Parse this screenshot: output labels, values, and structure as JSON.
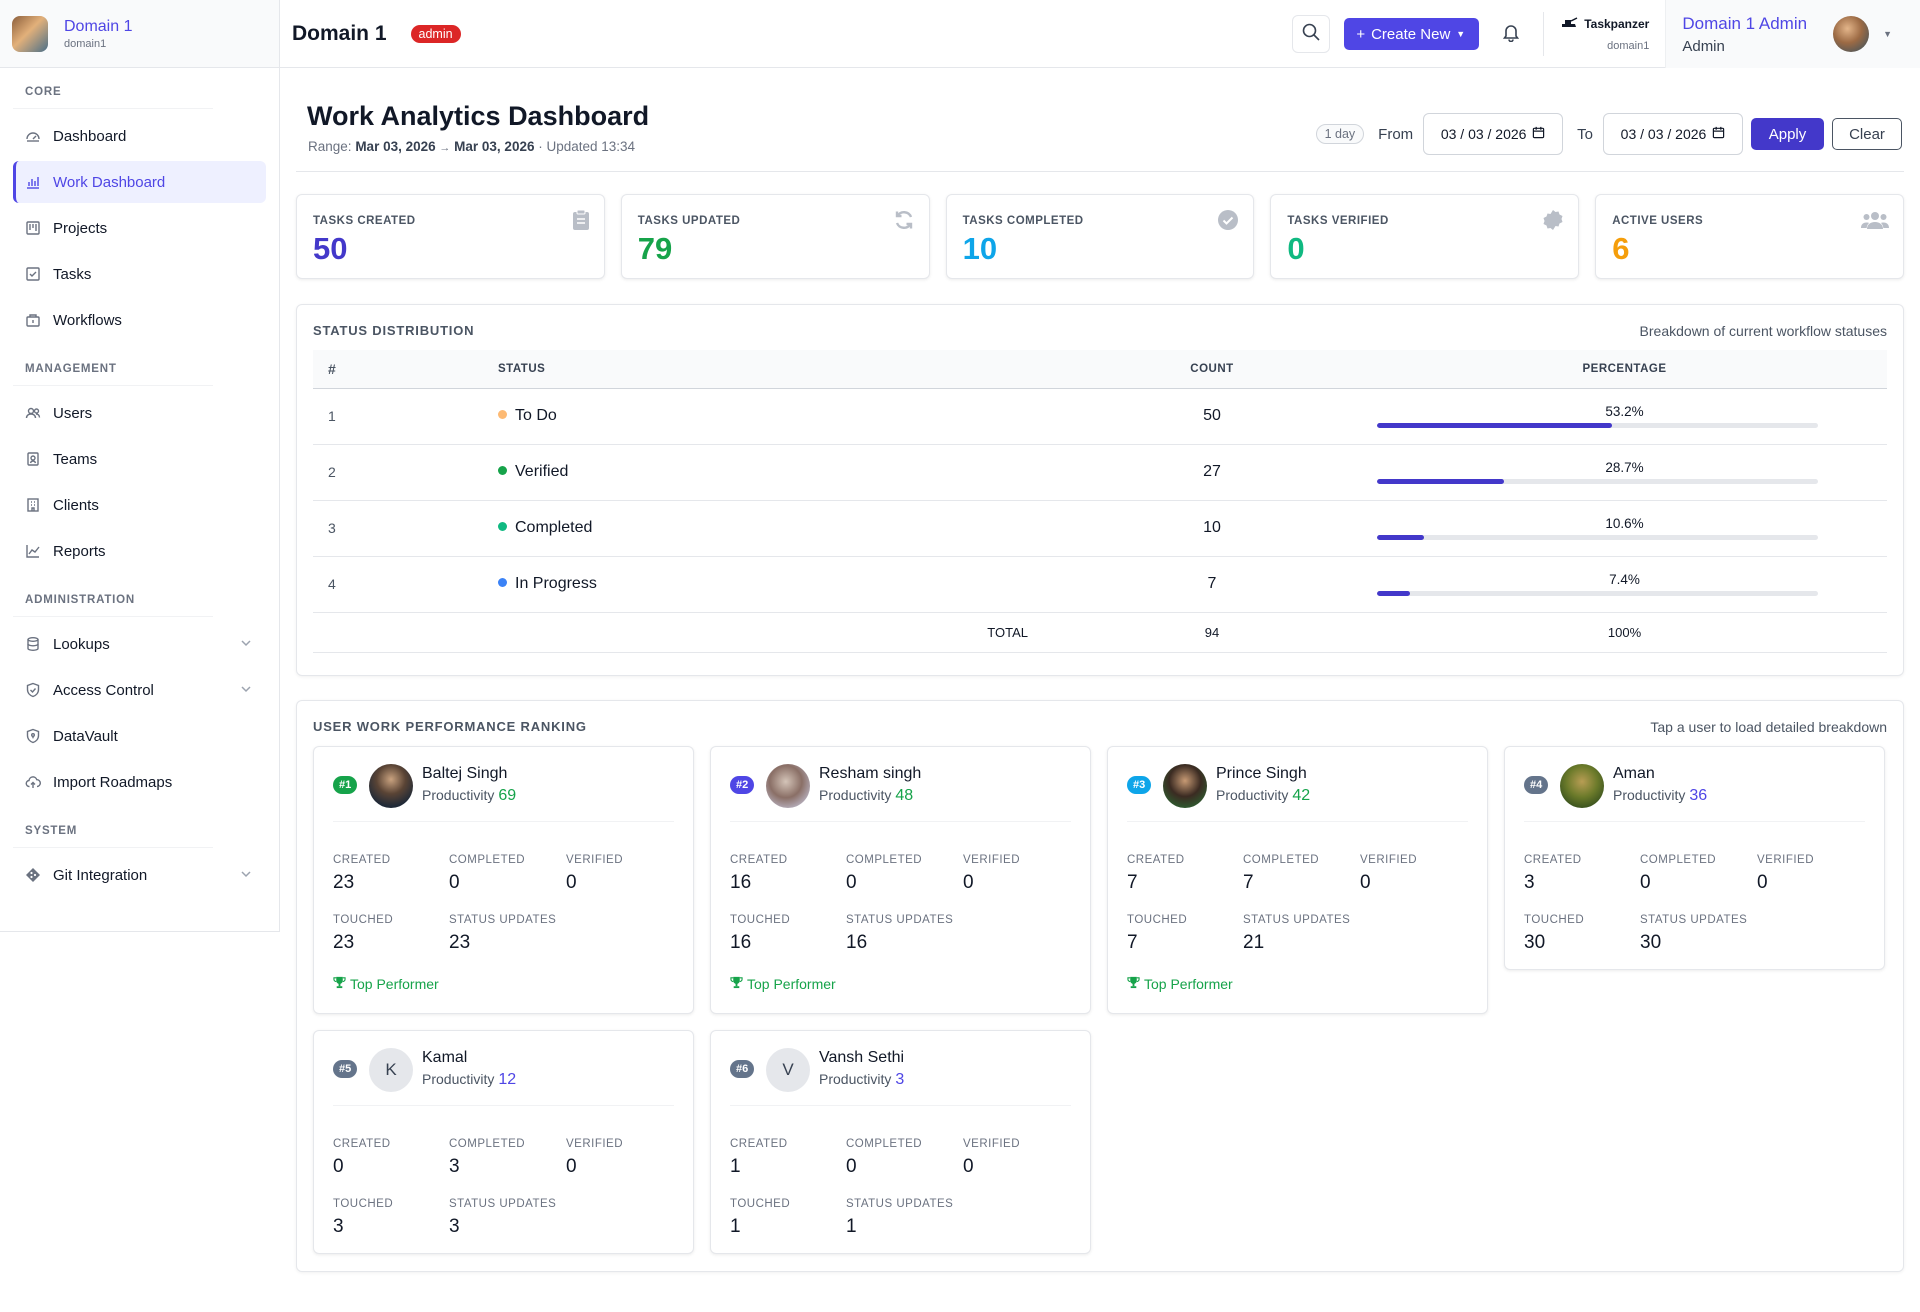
{
  "brand": {
    "name": "Domain 1",
    "sub": "domain1"
  },
  "sidebar": {
    "sections": [
      {
        "label": "CORE",
        "items": [
          {
            "label": "Dashboard"
          },
          {
            "label": "Work Dashboard"
          },
          {
            "label": "Projects"
          },
          {
            "label": "Tasks"
          },
          {
            "label": "Workflows"
          }
        ]
      },
      {
        "label": "MANAGEMENT",
        "items": [
          {
            "label": "Users"
          },
          {
            "label": "Teams"
          },
          {
            "label": "Clients"
          },
          {
            "label": "Reports"
          }
        ]
      },
      {
        "label": "ADMINISTRATION",
        "items": [
          {
            "label": "Lookups"
          },
          {
            "label": "Access Control"
          },
          {
            "label": "DataVault"
          },
          {
            "label": "Import Roadmaps"
          }
        ]
      },
      {
        "label": "SYSTEM",
        "items": [
          {
            "label": "Git Integration"
          }
        ]
      }
    ]
  },
  "header": {
    "title": "Domain 1",
    "role_badge": "admin",
    "create_label": "Create New",
    "taskpanzer_name": "Taskpanzer",
    "taskpanzer_sub": "domain1",
    "user_name": "Domain 1 Admin",
    "user_role": "Admin"
  },
  "dashboard": {
    "title": "Work Analytics Dashboard",
    "range_prefix": "Range:",
    "range_from": "Mar 03, 2026",
    "range_arrow": "→",
    "range_to": "Mar 03, 2026",
    "updated": "· Updated 13:34",
    "day_pill": "1 day",
    "from_label": "From",
    "from_value": "03 / 03 / 2026",
    "to_label": "To",
    "to_value": "03 / 03 / 2026",
    "apply_label": "Apply",
    "clear_label": "Clear"
  },
  "stats": [
    {
      "label": "TASKS CREATED",
      "value": "50",
      "color": "#4338ca",
      "icon": "clipboard-icon"
    },
    {
      "label": "TASKS UPDATED",
      "value": "79",
      "color": "#16a34a",
      "icon": "refresh-icon"
    },
    {
      "label": "TASKS COMPLETED",
      "value": "10",
      "color": "#0ea5e9",
      "icon": "check-circle-icon"
    },
    {
      "label": "TASKS VERIFIED",
      "value": "0",
      "color": "#10b981",
      "icon": "verified-badge-icon"
    },
    {
      "label": "ACTIVE USERS",
      "value": "6",
      "color": "#f59e0b",
      "icon": "users-icon"
    }
  ],
  "status": {
    "title": "STATUS DISTRIBUTION",
    "subtitle": "Breakdown of current workflow statuses",
    "headers": {
      "idx": "#",
      "status": "STATUS",
      "count": "COUNT",
      "percentage": "PERCENTAGE"
    },
    "rows": [
      {
        "idx": "1",
        "status": "To Do",
        "dot": "#fdba74",
        "count": "50",
        "pct": "53.2%",
        "fill": 0.532
      },
      {
        "idx": "2",
        "status": "Verified",
        "dot": "#16a34a",
        "count": "27",
        "pct": "28.7%",
        "fill": 0.287
      },
      {
        "idx": "3",
        "status": "Completed",
        "dot": "#10b981",
        "count": "10",
        "pct": "10.6%",
        "fill": 0.106
      },
      {
        "idx": "4",
        "status": "In Progress",
        "dot": "#3b82f6",
        "count": "7",
        "pct": "7.4%",
        "fill": 0.074
      }
    ],
    "total": {
      "label": "TOTAL",
      "count": "94",
      "pct": "100%"
    }
  },
  "ranking": {
    "title": "USER WORK PERFORMANCE RANKING",
    "subtitle": "Tap a user to load detailed breakdown",
    "metric_labels": {
      "created": "CREATED",
      "completed": "COMPLETED",
      "verified": "VERIFIED",
      "touched": "TOUCHED",
      "status_updates": "STATUS UPDATES"
    },
    "productivity_label": "Productivity",
    "top_label": "Top Performer",
    "users": [
      {
        "rank": "#1",
        "rank_color": "#16a34a",
        "name": "Baltej Singh",
        "initial": "",
        "avatar": "photo",
        "productivity": "69",
        "prod_color": "#16a34a",
        "created": "23",
        "completed": "0",
        "verified": "0",
        "touched": "23",
        "status_updates": "23",
        "top": true
      },
      {
        "rank": "#2",
        "rank_color": "#4f46e5",
        "name": "Resham singh",
        "initial": "",
        "avatar": "photo",
        "productivity": "48",
        "prod_color": "#16a34a",
        "created": "16",
        "completed": "0",
        "verified": "0",
        "touched": "16",
        "status_updates": "16",
        "top": true
      },
      {
        "rank": "#3",
        "rank_color": "#0ea5e9",
        "name": "Prince Singh",
        "initial": "",
        "avatar": "photo",
        "productivity": "42",
        "prod_color": "#16a34a",
        "created": "7",
        "completed": "7",
        "verified": "0",
        "touched": "7",
        "status_updates": "21",
        "top": true
      },
      {
        "rank": "#4",
        "rank_color": "#64748b",
        "name": "Aman",
        "initial": "",
        "avatar": "photo",
        "productivity": "36",
        "prod_color": "#4f46e5",
        "created": "3",
        "completed": "0",
        "verified": "0",
        "touched": "30",
        "status_updates": "30",
        "top": false
      },
      {
        "rank": "#5",
        "rank_color": "#64748b",
        "name": "Kamal",
        "initial": "K",
        "avatar": "initial",
        "productivity": "12",
        "prod_color": "#4f46e5",
        "created": "0",
        "completed": "3",
        "verified": "0",
        "touched": "3",
        "status_updates": "3",
        "top": false
      },
      {
        "rank": "#6",
        "rank_color": "#64748b",
        "name": "Vansh Sethi",
        "initial": "V",
        "avatar": "initial",
        "productivity": "3",
        "prod_color": "#4f46e5",
        "created": "1",
        "completed": "0",
        "verified": "0",
        "touched": "1",
        "status_updates": "1",
        "top": false
      }
    ]
  }
}
